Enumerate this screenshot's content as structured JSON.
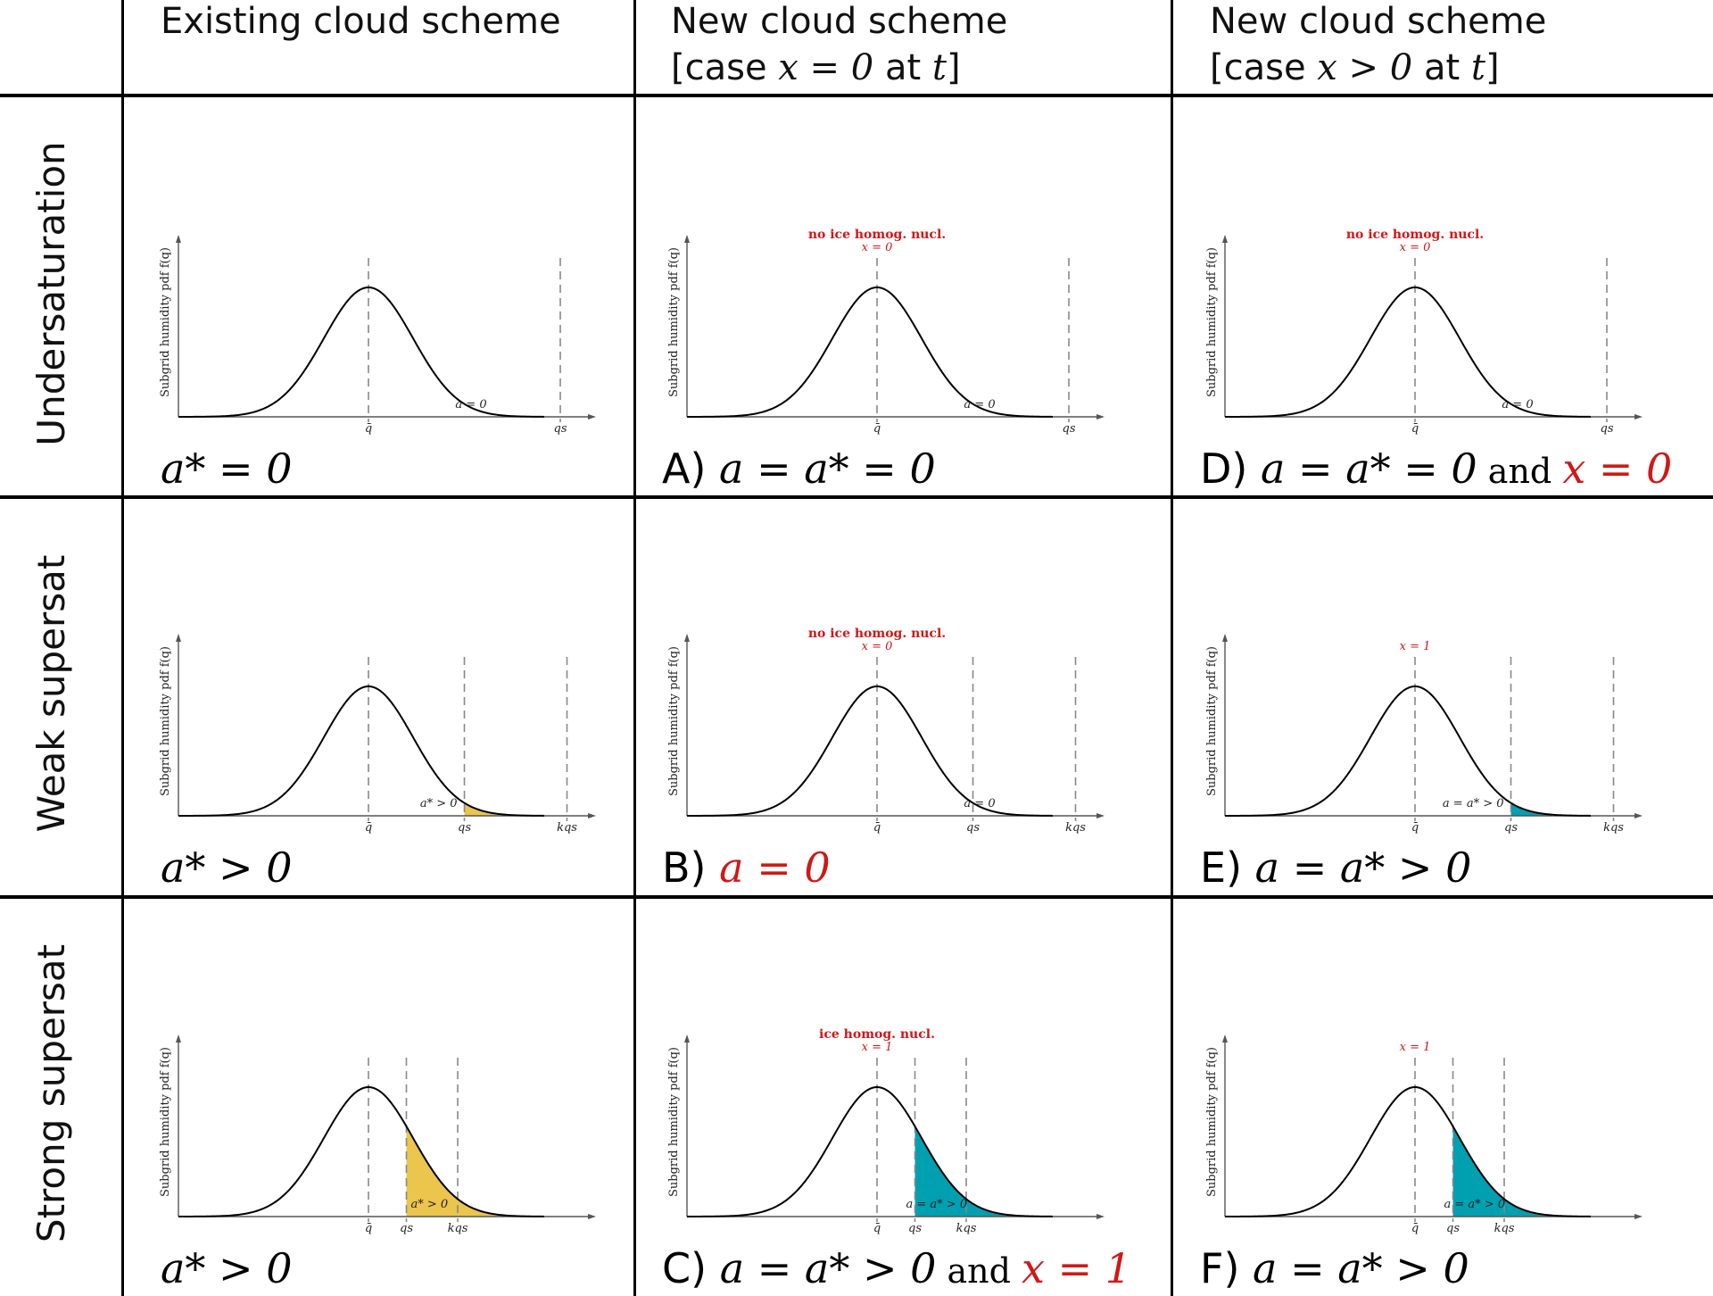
{
  "columns": [
    {
      "line1": "Existing cloud scheme",
      "line2_prefix": "",
      "line2_math": "",
      "line2_suffix": ""
    },
    {
      "line1": "New cloud scheme",
      "line2_prefix": "[case ",
      "line2_math": "x = 0",
      "line2_at": " at ",
      "line2_t": "t",
      "line2_suffix": "]"
    },
    {
      "line1": "New cloud scheme",
      "line2_prefix": "[case ",
      "line2_math": "x > 0",
      "line2_at": " at ",
      "line2_t": "t",
      "line2_suffix": "]"
    }
  ],
  "rows": [
    {
      "label": "Undersaturation"
    },
    {
      "label": "Weak supersat"
    },
    {
      "label": "Strong supersat"
    }
  ],
  "colors": {
    "existing_fill": "#ebc54c",
    "new_fill": "#00a0b0",
    "annotation_red": "#d01818",
    "curve": "#000000",
    "dashed": "#888888",
    "axis": "#555555"
  },
  "axis": {
    "ylabel": "Subgrid humidity pdf f(q)",
    "ticks": {
      "qbar": "q̄",
      "qs": "qs",
      "kqs": "kqs"
    }
  },
  "panels": [
    {
      "row": 0,
      "col": 0,
      "thresholds": [
        "qbar",
        "qs"
      ],
      "fill": null,
      "region_label": "a = 0",
      "top_annotation": "",
      "top_x": "",
      "caption": {
        "letter": "",
        "parts": [
          {
            "t": "a* = 0",
            "style": "m"
          }
        ]
      }
    },
    {
      "row": 0,
      "col": 1,
      "thresholds": [
        "qbar",
        "qs"
      ],
      "fill": null,
      "region_label": "a = 0",
      "top_annotation": "no ice homog. nucl.",
      "top_x": "x = 0",
      "caption": {
        "letter": "A)",
        "parts": [
          {
            "t": "a = a* = 0",
            "style": "m"
          }
        ]
      }
    },
    {
      "row": 0,
      "col": 2,
      "thresholds": [
        "qbar",
        "qs"
      ],
      "fill": null,
      "region_label": "a = 0",
      "top_annotation": "no ice homog. nucl.",
      "top_x": "x = 0",
      "caption": {
        "letter": "D)",
        "parts": [
          {
            "t": "a = a* = 0",
            "style": "m"
          },
          {
            "t": " and ",
            "style": "and"
          },
          {
            "t": "x = 0",
            "style": "m red"
          }
        ]
      }
    },
    {
      "row": 1,
      "col": 0,
      "thresholds": [
        "qbar",
        "qs",
        "kqs"
      ],
      "fill": "existing",
      "region_label": "a* > 0",
      "top_annotation": "",
      "top_x": "",
      "caption": {
        "letter": "",
        "parts": [
          {
            "t": "a* > 0",
            "style": "m"
          }
        ]
      }
    },
    {
      "row": 1,
      "col": 1,
      "thresholds": [
        "qbar",
        "qs",
        "kqs"
      ],
      "fill": null,
      "region_label": "a = 0",
      "top_annotation": "no ice homog. nucl.",
      "top_x": "x = 0",
      "caption": {
        "letter": "B)",
        "parts": [
          {
            "t": "a = 0",
            "style": "m red"
          }
        ]
      }
    },
    {
      "row": 1,
      "col": 2,
      "thresholds": [
        "qbar",
        "qs",
        "kqs"
      ],
      "fill": "new",
      "region_label": "a = a* > 0",
      "top_annotation": "",
      "top_x": "x = 1",
      "caption": {
        "letter": "E)",
        "parts": [
          {
            "t": "a = a* > 0",
            "style": "m"
          }
        ]
      }
    },
    {
      "row": 2,
      "col": 0,
      "thresholds": [
        "qbar",
        "qs",
        "kqs"
      ],
      "fill": "existing",
      "region_label": "a* > 0",
      "top_annotation": "",
      "top_x": "",
      "caption": {
        "letter": "",
        "parts": [
          {
            "t": "a* > 0",
            "style": "m"
          }
        ]
      }
    },
    {
      "row": 2,
      "col": 1,
      "thresholds": [
        "qbar",
        "qs",
        "kqs"
      ],
      "fill": "new",
      "region_label": "a = a* > 0",
      "top_annotation": "ice homog. nucl.",
      "top_x": "x = 1",
      "caption": {
        "letter": "C)",
        "parts": [
          {
            "t": "a = a* > 0",
            "style": "m"
          },
          {
            "t": " and ",
            "style": "and"
          },
          {
            "t": "x = 1",
            "style": "m red"
          }
        ]
      }
    },
    {
      "row": 2,
      "col": 2,
      "thresholds": [
        "qbar",
        "qs",
        "kqs"
      ],
      "fill": "new",
      "region_label": "a = a* > 0",
      "top_annotation": "",
      "top_x": "x = 1",
      "caption": {
        "letter": "F)",
        "parts": [
          {
            "t": "a = a* > 0",
            "style": "m"
          }
        ]
      }
    }
  ],
  "threshold_positions_sigma": {
    "row0": {
      "qbar": 0,
      "qs": 4.3
    },
    "row1": {
      "qbar": 0,
      "qs": 2.15,
      "kqs": 4.45
    },
    "row2": {
      "qbar": 0,
      "qs": 0.85,
      "kqs": 2.0
    }
  }
}
